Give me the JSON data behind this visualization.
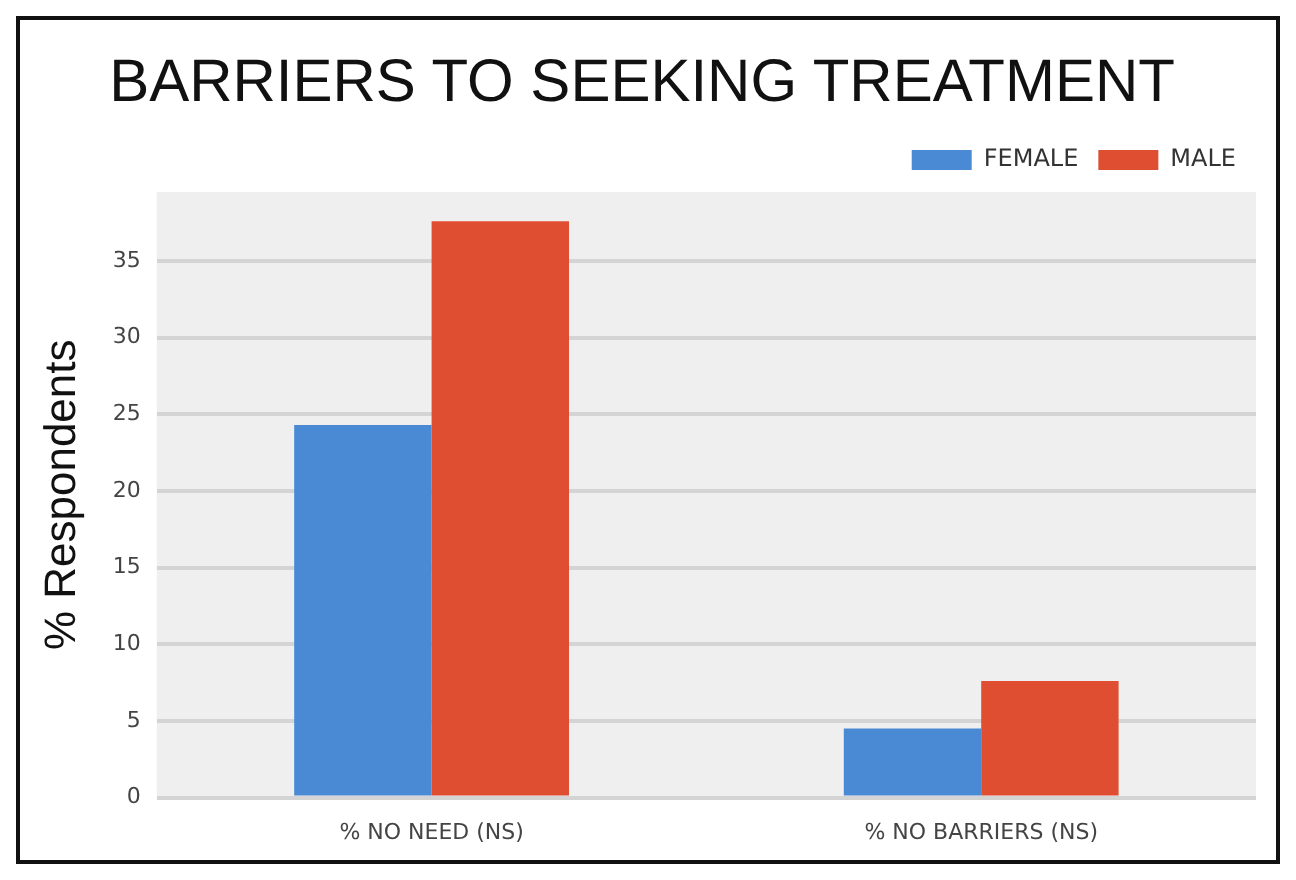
{
  "chart_data": {
    "type": "bar",
    "title": "BARRIERS TO SEEKING TREATMENT",
    "ylabel": "% Respondents",
    "categories": [
      "% NO NEED (NS)",
      "% NO BARRIERS (NS)"
    ],
    "series": [
      {
        "name": "FEMALE",
        "color": "#4a8ad4",
        "values": [
          24.3,
          4.5
        ]
      },
      {
        "name": "MALE",
        "color": "#e04e32",
        "values": [
          37.6,
          7.6
        ]
      }
    ],
    "ylim": [
      0,
      39.5
    ],
    "yticks": [
      0,
      5,
      10,
      15,
      20,
      25,
      30,
      35
    ],
    "grid": true,
    "legend": "top right"
  }
}
